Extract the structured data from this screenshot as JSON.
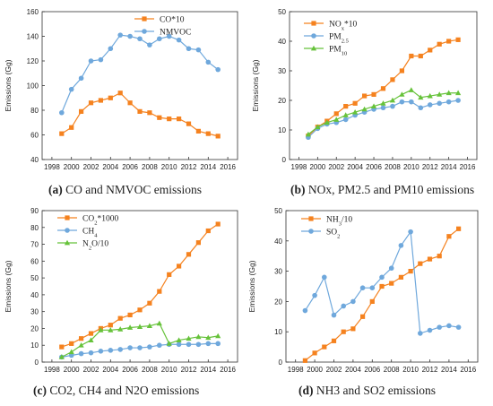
{
  "figure": {
    "captions": [
      {
        "letter": "(a)",
        "text": "CO and NMVOC emissions"
      },
      {
        "letter": "(b)",
        "text": "NOx, PM2.5 and PM10 emissions"
      },
      {
        "letter": "(c)",
        "text": "CO2, CH4 and N2O emissions"
      },
      {
        "letter": "(d)",
        "text": "NH3 and SO2 emissions"
      }
    ]
  },
  "colors": {
    "orange": "#f5821f",
    "blue": "#6fa8dc",
    "green": "#66c23a"
  },
  "chart_data": [
    {
      "type": "line",
      "xlabel": "",
      "ylabel": "Emissions (Gg)",
      "xlim": [
        1997,
        2017
      ],
      "ylim": [
        40,
        160
      ],
      "xticks": [
        1998,
        2000,
        2002,
        2004,
        2006,
        2008,
        2010,
        2012,
        2014,
        2016
      ],
      "yticks": [
        40,
        60,
        80,
        100,
        120,
        140,
        160
      ],
      "legend": "top-right",
      "x": [
        1999,
        2000,
        2001,
        2002,
        2003,
        2004,
        2005,
        2006,
        2007,
        2008,
        2009,
        2010,
        2011,
        2012,
        2013,
        2014,
        2015
      ],
      "series": [
        {
          "name": "CO*10",
          "marker": "square",
          "color": "orange",
          "values": [
            61,
            66,
            79,
            86,
            88,
            90,
            94,
            86,
            79,
            78,
            74,
            73,
            73,
            69,
            63,
            61,
            59
          ]
        },
        {
          "name": "NMVOC",
          "marker": "circle",
          "color": "blue",
          "values": [
            78,
            97,
            106,
            120,
            121,
            130,
            141,
            140,
            138,
            133,
            138,
            140,
            137,
            130,
            129,
            119,
            113
          ]
        }
      ]
    },
    {
      "type": "line",
      "xlabel": "",
      "ylabel": "Emissions (Gg)",
      "xlim": [
        1997,
        2017
      ],
      "ylim": [
        0,
        50
      ],
      "xticks": [
        1998,
        2000,
        2002,
        2004,
        2006,
        2008,
        2010,
        2012,
        2014,
        2016
      ],
      "yticks": [
        0,
        10,
        20,
        30,
        40,
        50
      ],
      "legend": "top-left",
      "x": [
        1999,
        2000,
        2001,
        2002,
        2003,
        2004,
        2005,
        2006,
        2007,
        2008,
        2009,
        2010,
        2011,
        2012,
        2013,
        2014,
        2015
      ],
      "series": [
        {
          "name": "NOx*10",
          "legend_parts": [
            [
              "NO",
              ""
            ],
            [
              "x",
              "sub"
            ],
            [
              "*10",
              ""
            ]
          ],
          "marker": "square",
          "color": "orange",
          "values": [
            8,
            11,
            13,
            15.5,
            18,
            19,
            21.5,
            22,
            24,
            27,
            30,
            35,
            35,
            37,
            39,
            40,
            40.5
          ]
        },
        {
          "name": "PM2.5",
          "legend_parts": [
            [
              "PM",
              ""
            ],
            [
              "2.5",
              "sub"
            ]
          ],
          "marker": "circle",
          "color": "blue",
          "values": [
            7.5,
            10.5,
            12,
            12.5,
            13.5,
            15,
            16,
            17,
            17.5,
            18,
            19.5,
            19.5,
            17.5,
            18.5,
            19,
            19.5,
            20
          ]
        },
        {
          "name": "PM10",
          "legend_parts": [
            [
              "PM",
              ""
            ],
            [
              "10",
              "sub"
            ]
          ],
          "marker": "triangle",
          "color": "green",
          "values": [
            8.5,
            11,
            12.5,
            13.5,
            15,
            16,
            17,
            18,
            19,
            20,
            22,
            23.5,
            21,
            21.5,
            22,
            22.5,
            22.5
          ]
        }
      ]
    },
    {
      "type": "line",
      "xlabel": "",
      "ylabel": "Emissions (Gg)",
      "xlim": [
        1997,
        2017
      ],
      "ylim": [
        0,
        90
      ],
      "xticks": [
        1998,
        2000,
        2002,
        2004,
        2006,
        2008,
        2010,
        2012,
        2014,
        2016
      ],
      "yticks": [
        0,
        10,
        20,
        30,
        40,
        50,
        60,
        70,
        80,
        90
      ],
      "legend": "top-left",
      "x": [
        1999,
        2000,
        2001,
        2002,
        2003,
        2004,
        2005,
        2006,
        2007,
        2008,
        2009,
        2010,
        2011,
        2012,
        2013,
        2014,
        2015
      ],
      "series": [
        {
          "name": "CO2*1000",
          "legend_parts": [
            [
              "CO",
              ""
            ],
            [
              "2",
              "sub"
            ],
            [
              "*1000",
              ""
            ]
          ],
          "marker": "square",
          "color": "orange",
          "values": [
            9,
            11,
            14,
            17,
            20,
            22,
            26,
            28,
            31,
            35,
            42,
            52,
            57,
            64,
            71,
            78,
            82
          ]
        },
        {
          "name": "CH4",
          "legend_parts": [
            [
              "CH",
              ""
            ],
            [
              "4",
              "sub"
            ]
          ],
          "marker": "circle",
          "color": "blue",
          "values": [
            3,
            4,
            5,
            5.5,
            6.5,
            7,
            7.5,
            8.5,
            8.5,
            9,
            10,
            10.5,
            10.5,
            10.5,
            10.5,
            11,
            11
          ]
        },
        {
          "name": "N2O/10",
          "legend_parts": [
            [
              "N",
              ""
            ],
            [
              "2",
              "sub"
            ],
            [
              "O/10",
              ""
            ]
          ],
          "marker": "triangle",
          "color": "green",
          "values": [
            3,
            6,
            10,
            13,
            19,
            19,
            19.5,
            20.5,
            21,
            21.5,
            23,
            11,
            13,
            14,
            15,
            14.5,
            15.5
          ]
        }
      ]
    },
    {
      "type": "line",
      "xlabel": "",
      "ylabel": "Emissions (Gg)",
      "xlim": [
        1997,
        2017
      ],
      "ylim": [
        0,
        50
      ],
      "xticks": [
        1998,
        2000,
        2002,
        2004,
        2006,
        2008,
        2010,
        2012,
        2014,
        2016
      ],
      "yticks": [
        0,
        10,
        20,
        30,
        40,
        50
      ],
      "legend": "top-left",
      "x": [
        1999,
        2000,
        2001,
        2002,
        2003,
        2004,
        2005,
        2006,
        2007,
        2008,
        2009,
        2010,
        2011,
        2012,
        2013,
        2014,
        2015
      ],
      "series": [
        {
          "name": "NH3/10",
          "legend_parts": [
            [
              "NH",
              ""
            ],
            [
              "3",
              "sub"
            ],
            [
              "/10",
              ""
            ]
          ],
          "marker": "square",
          "color": "orange",
          "values": [
            0.5,
            3,
            5,
            7,
            10,
            11,
            15,
            20,
            25,
            26,
            28,
            30,
            32.5,
            34,
            35,
            41.5,
            44
          ]
        },
        {
          "name": "SO2",
          "legend_parts": [
            [
              "SO",
              ""
            ],
            [
              "2",
              "sub"
            ]
          ],
          "marker": "circle",
          "color": "blue",
          "values": [
            17,
            22,
            28,
            15.5,
            18.5,
            20,
            24.5,
            24.5,
            28,
            31,
            38.5,
            43,
            9.5,
            10.5,
            11.5,
            12,
            11.5
          ]
        }
      ]
    }
  ]
}
